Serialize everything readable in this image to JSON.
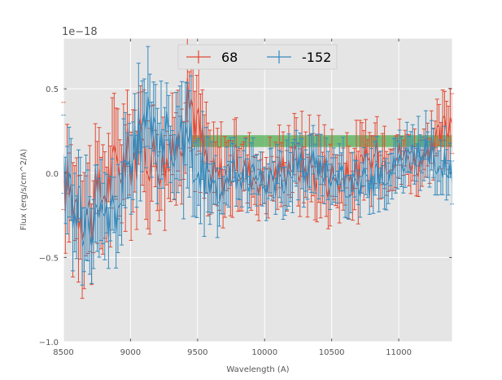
{
  "chart_data": {
    "type": "line",
    "style": "errorbar",
    "title": "",
    "xlabel": "Wavelength (A)",
    "ylabel": "Flux (erg/s/cm^2/A)",
    "y_offset_label": "1e−18",
    "y_scale": 1e-18,
    "xlim": [
      8500,
      11400
    ],
    "ylim": [
      -1.0,
      0.8
    ],
    "x_ticks": [
      8500,
      9000,
      9500,
      10000,
      10500,
      11000
    ],
    "x_tick_labels": [
      "8500",
      "9000",
      "9500",
      "10000",
      "10500",
      "11000"
    ],
    "y_ticks": [
      -1.0,
      -0.5,
      0.0,
      0.5
    ],
    "y_tick_labels": [
      "−1.0",
      "−0.5",
      "0.0",
      "0.5"
    ],
    "grid": true,
    "legend_position": "top-center",
    "band": {
      "x_start": 9450,
      "x_end": 11400,
      "y_low": 0.155,
      "y_high": 0.225,
      "color": "#2ca02c"
    },
    "series": [
      {
        "name": "68",
        "color": "#e24a33",
        "x": [
          8500,
          8700,
          8900,
          9100,
          9300,
          9450,
          9600,
          9800,
          10000,
          10200,
          10400,
          10600,
          10800,
          11000,
          11200,
          11400
        ],
        "values": [
          -0.05,
          -0.25,
          0.05,
          0.15,
          0.05,
          0.45,
          -0.05,
          0.05,
          -0.05,
          0.08,
          0.02,
          -0.05,
          0.08,
          0.12,
          0.05,
          0.35
        ],
        "error": [
          0.3,
          0.35,
          0.3,
          0.3,
          0.25,
          0.3,
          0.25,
          0.2,
          0.15,
          0.2,
          0.25,
          0.2,
          0.2,
          0.15,
          0.15,
          0.2
        ]
      },
      {
        "name": "-152",
        "color": "#348abd",
        "x": [
          8500,
          8700,
          8900,
          9100,
          9300,
          9450,
          9600,
          9800,
          10000,
          10200,
          10400,
          10600,
          10800,
          11000,
          11200,
          11400
        ],
        "values": [
          -0.05,
          -0.35,
          -0.2,
          0.3,
          0.2,
          0.15,
          -0.1,
          0.0,
          -0.05,
          0.0,
          0.05,
          -0.05,
          -0.05,
          0.05,
          0.15,
          0.0
        ],
        "error": [
          0.3,
          0.3,
          0.25,
          0.3,
          0.25,
          0.3,
          0.2,
          0.15,
          0.15,
          0.2,
          0.15,
          0.15,
          0.15,
          0.15,
          0.15,
          0.15
        ]
      }
    ]
  }
}
